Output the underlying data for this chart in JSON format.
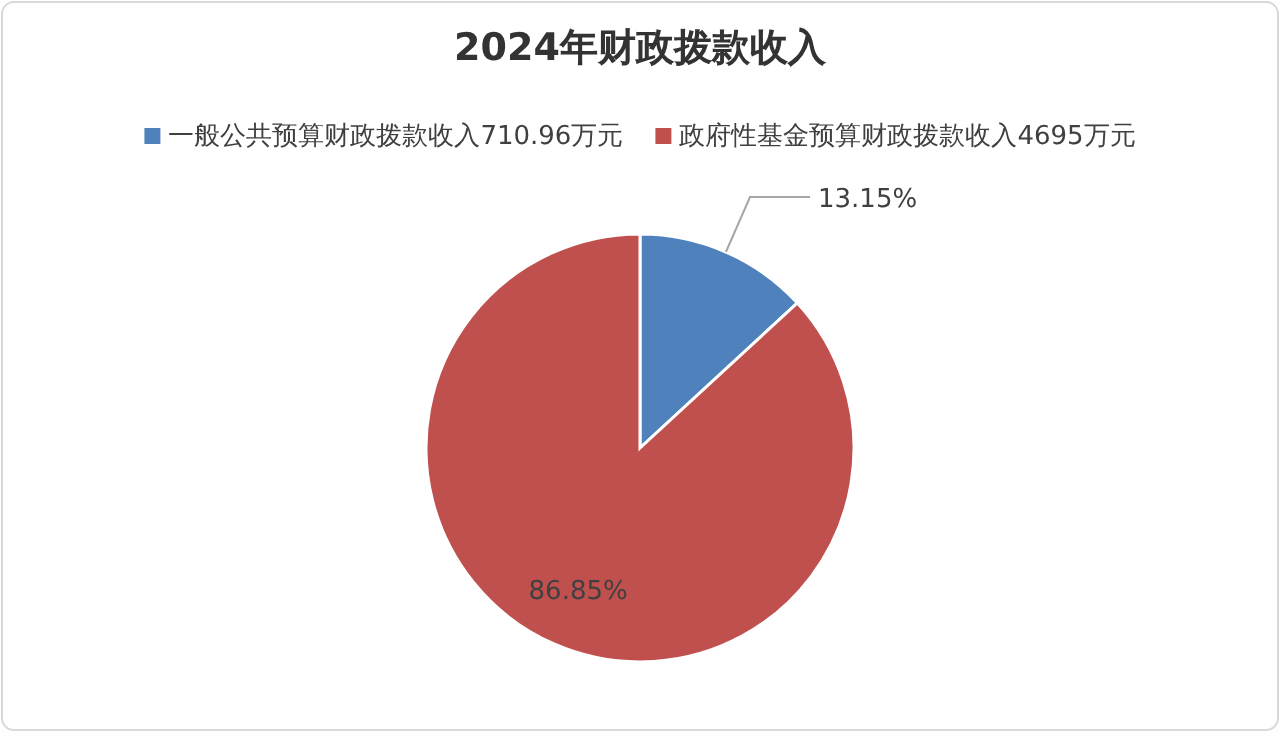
{
  "chart_data": {
    "type": "pie",
    "title": "2024年财政拨款收入",
    "categories": [
      "一般公共预算财政拨款收入710.96万元",
      "政府性基金预算财政拨款收入4695万元"
    ],
    "values": [
      13.15,
      86.85
    ],
    "colors": [
      "#4f81bd",
      "#c0504d"
    ],
    "value_labels": [
      "13.15%",
      "86.85%"
    ],
    "legend": "top"
  }
}
